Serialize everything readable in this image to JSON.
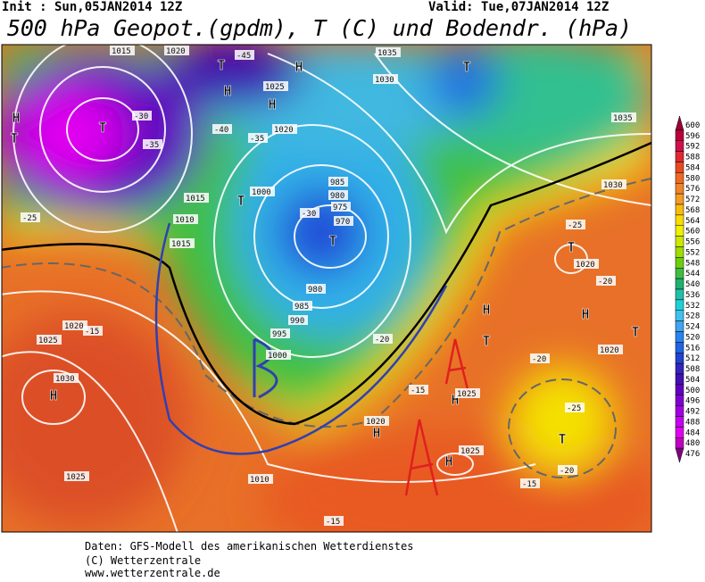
{
  "header": {
    "init": "Init : Sun,05JAN2014 12Z",
    "valid": "Valid: Tue,07JAN2014 12Z",
    "title": "500 hPa Geopot.(gpdm), T (C) und Bodendr. (hPa)"
  },
  "colorbar": {
    "labels": [
      "600",
      "596",
      "592",
      "588",
      "584",
      "580",
      "576",
      "572",
      "568",
      "564",
      "560",
      "556",
      "552",
      "548",
      "544",
      "540",
      "536",
      "532",
      "528",
      "524",
      "520",
      "516",
      "512",
      "508",
      "504",
      "500",
      "496",
      "492",
      "488",
      "484",
      "480",
      "476"
    ],
    "colors": [
      "#9a0030",
      "#b8003c",
      "#d0104c",
      "#e02830",
      "#e84a20",
      "#f06a20",
      "#f08428",
      "#f49c28",
      "#f8bc10",
      "#f8dc00",
      "#f0f000",
      "#cce800",
      "#a0dc00",
      "#70cc10",
      "#40bc40",
      "#20b070",
      "#20c0a8",
      "#20d0d8",
      "#40c0f0",
      "#40a4f0",
      "#2884f0",
      "#2064e0",
      "#2044d0",
      "#3424c0",
      "#4410b0",
      "#6000c0",
      "#8000d0",
      "#a000e0",
      "#c400f0",
      "#e000f0",
      "#c000c0",
      "#800080"
    ]
  },
  "map": {
    "labels": [
      "H",
      "T",
      "T",
      "H",
      "H",
      "T",
      "H",
      "T",
      "T",
      "T",
      "H",
      "H",
      "H",
      "H",
      "T",
      "T",
      "H",
      "T",
      "H",
      "T",
      "1015",
      "1020",
      "1035",
      "1025",
      "1030",
      "1020",
      "985",
      "980",
      "975",
      "970",
      "1000",
      "1015",
      "1010",
      "1015",
      "1000",
      "995",
      "990",
      "985",
      "980",
      "1030",
      "1025",
      "1020",
      "1025",
      "1020",
      "1025",
      "1025",
      "1010",
      "1035",
      "1030",
      "1020",
      "1020",
      "-45",
      "-40",
      "-35",
      "-30",
      "-35",
      "-30",
      "-25",
      "-20",
      "-25",
      "-20",
      "-15",
      "-15",
      "-20",
      "-25",
      "-20",
      "-15",
      "-15"
    ]
  },
  "footer": [
    "Daten: GFS-Modell des amerikanischen Wetterdienstes",
    "(C) Wetterzentrale",
    "www.wetterzentrale.de"
  ]
}
